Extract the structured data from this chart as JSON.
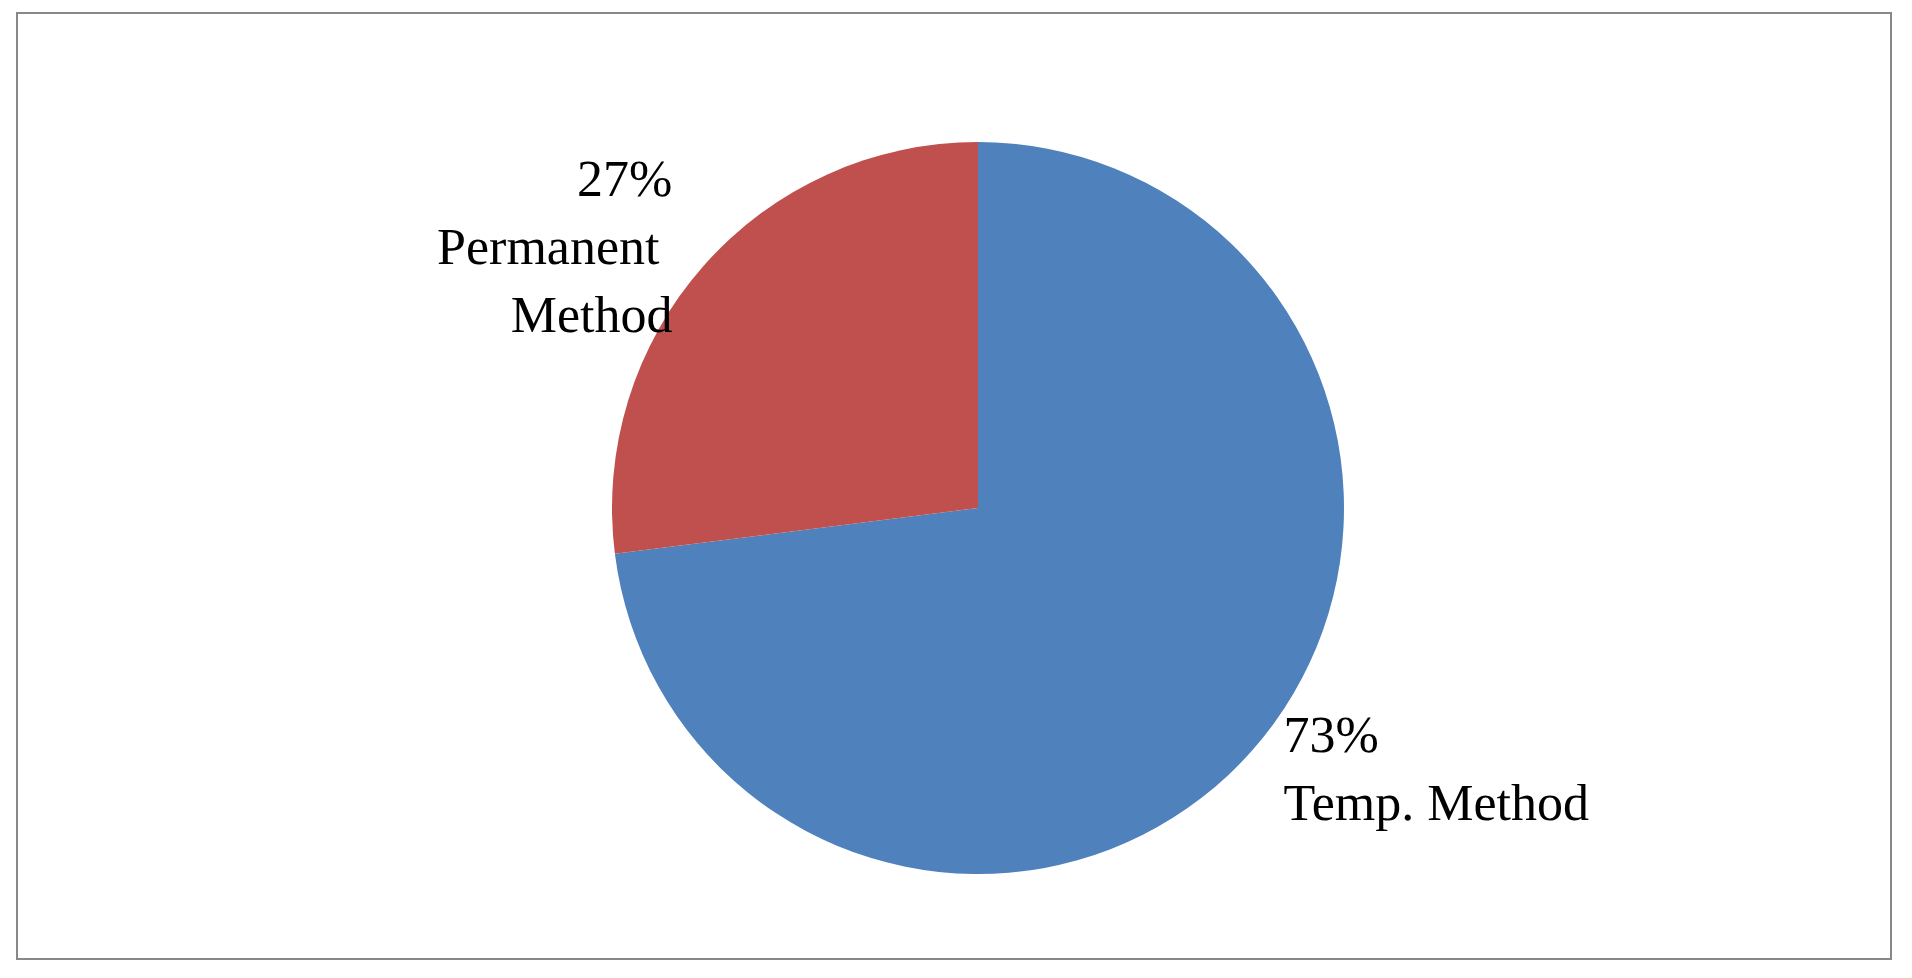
{
  "chart_data": {
    "type": "pie",
    "categories": [
      "Temp. Method",
      "Permanent Method"
    ],
    "values": [
      73,
      27
    ],
    "colors": [
      "#4f81bd",
      "#c0504d"
    ],
    "value_labels": [
      "73%",
      "27%"
    ],
    "legend": false
  }
}
